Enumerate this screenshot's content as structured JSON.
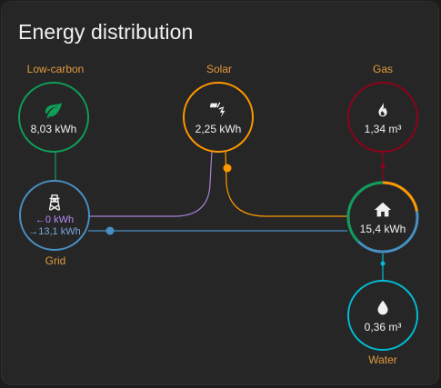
{
  "card": {
    "title": "Energy distribution"
  },
  "nodes": {
    "low_carbon": {
      "label": "Low-carbon",
      "value": "8,03 kWh",
      "icon": "leaf-icon",
      "color": "#0f9d58"
    },
    "solar": {
      "label": "Solar",
      "value": "2,25 kWh",
      "icon": "solar-power-icon",
      "color": "#ff9800"
    },
    "gas": {
      "label": "Gas",
      "value": "1,34 m³",
      "icon": "fire-icon",
      "color": "#8e021b"
    },
    "grid": {
      "label": "Grid",
      "from_grid": "←0 kWh",
      "to_grid": "→13,1 kWh",
      "icon": "transmission-tower-icon",
      "color": "#488fc2"
    },
    "home": {
      "value": "15,4 kWh",
      "icon": "home-icon"
    },
    "water": {
      "label": "Water",
      "value": "0,36 m³",
      "icon": "water-drop-icon",
      "color": "#00bcd4"
    }
  },
  "colors": {
    "label_orange": "#e29a3c",
    "grid_return_purple": "#a87fd8",
    "grid_blue": "#488fc2"
  }
}
